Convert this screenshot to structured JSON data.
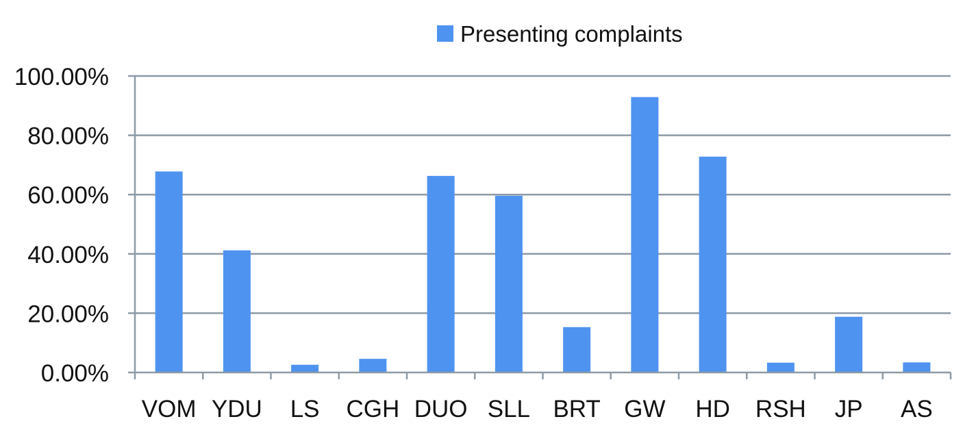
{
  "chart_data": {
    "type": "bar",
    "categories": [
      "VOM",
      "YDU",
      "LS",
      "CGH",
      "DUO",
      "SLL",
      "BRT",
      "GW",
      "HD",
      "RSH",
      "JP",
      "AS"
    ],
    "series": [
      {
        "name": "Presenting complaints",
        "values": [
          67.8,
          41.2,
          2.6,
          4.6,
          66.3,
          59.6,
          15.3,
          92.9,
          72.8,
          3.3,
          18.8,
          3.4
        ],
        "color": "#4f93f0"
      }
    ],
    "y_ticks": [
      "0.00%",
      "20.00%",
      "40.00%",
      "60.00%",
      "80.00%",
      "100.00%"
    ],
    "ylim": [
      0,
      100
    ],
    "grid": true,
    "legend_position": "top-center",
    "gridline_color": "#8c9aa6"
  }
}
